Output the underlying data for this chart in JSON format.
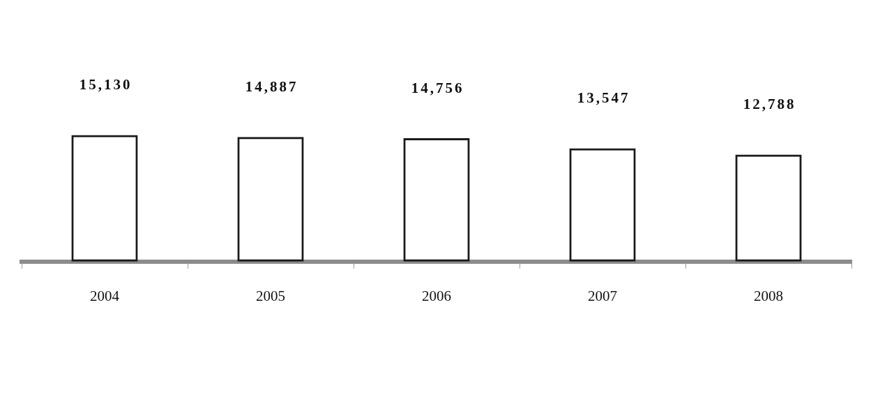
{
  "chart_data": {
    "type": "bar",
    "categories": [
      "2004",
      "2005",
      "2006",
      "2007",
      "2008"
    ],
    "values": [
      15130,
      14887,
      14756,
      13547,
      12788
    ],
    "value_labels": [
      "15,130",
      "14,887",
      "14,756",
      "13,547",
      "12,788"
    ],
    "color": "#1a1a1a"
  }
}
